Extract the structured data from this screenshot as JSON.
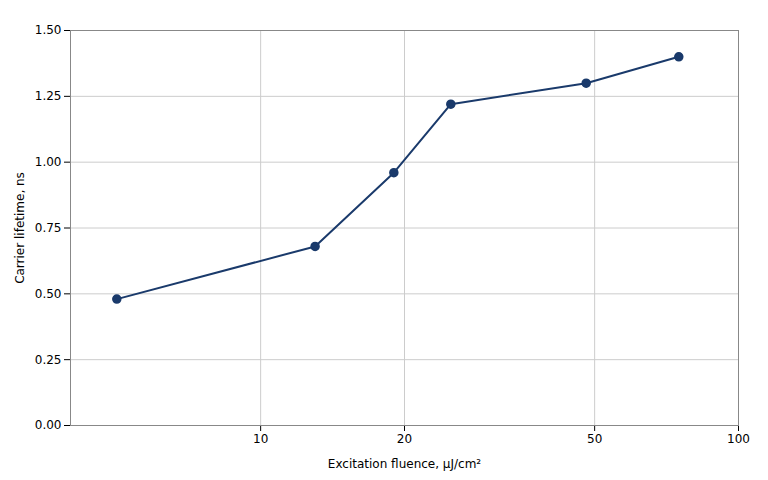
{
  "chart_data": {
    "type": "line",
    "xlabel": "Excitation fluence, μJ/cm²",
    "ylabel": "Carrier lifetime, ns",
    "x": [
      5,
      13,
      19,
      25,
      48,
      75
    ],
    "values": [
      0.48,
      0.68,
      0.96,
      1.22,
      1.3,
      1.4
    ],
    "color": "#1a3a6b",
    "marker": "circle",
    "log": "x",
    "xlim": [
      4,
      100
    ],
    "xticks": [
      10,
      20,
      50,
      100
    ],
    "ylim": [
      0.0,
      1.5
    ],
    "yticks": [
      {
        "value": 0.0,
        "label": "0.00"
      },
      0.25,
      {
        "value": 0.5,
        "label": "0.50"
      },
      0.75,
      {
        "value": 1.0,
        "label": "1.00"
      },
      1.25,
      {
        "value": 1.5,
        "label": "1.50"
      }
    ],
    "grid": true
  }
}
